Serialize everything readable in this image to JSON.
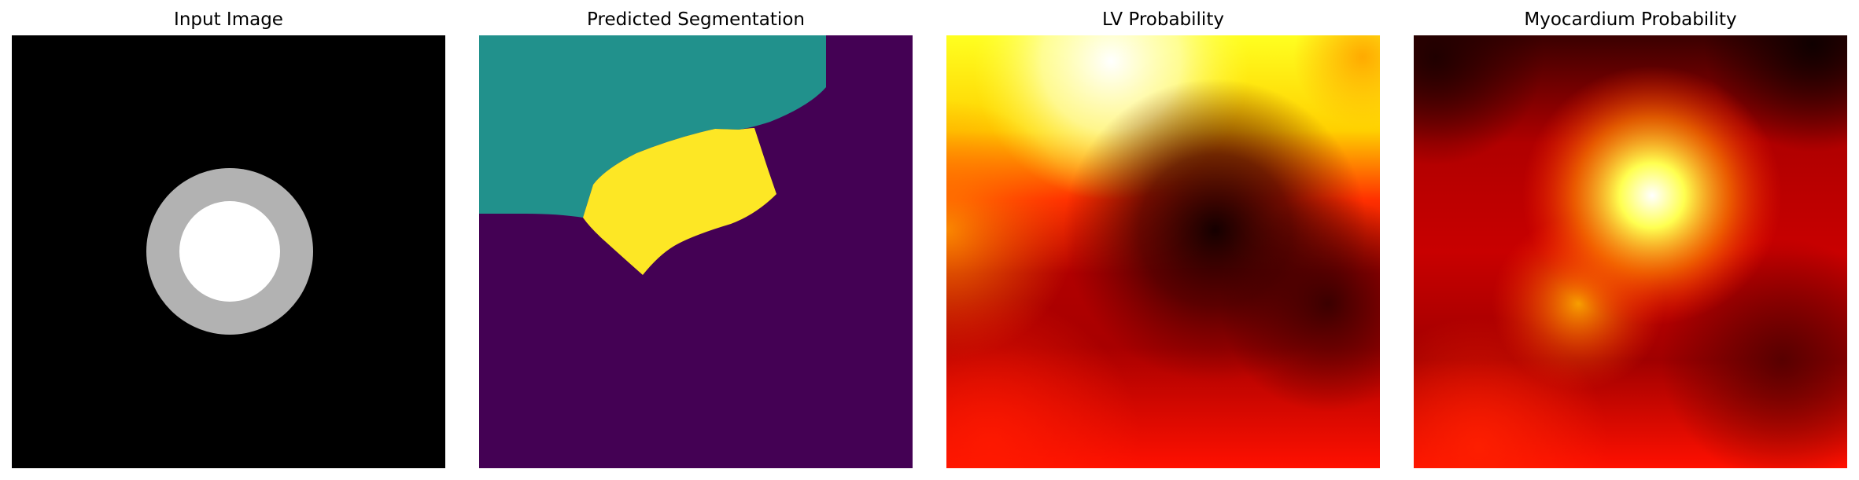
{
  "figure": {
    "panels": [
      {
        "title": "Input Image",
        "colormap": "gray"
      },
      {
        "title": "Predicted Segmentation",
        "colormap": "viridis"
      },
      {
        "title": "LV Probability",
        "colormap": "hot"
      },
      {
        "title": "Myocardium Probability",
        "colormap": "hot"
      }
    ]
  },
  "colors": {
    "gray_ring": "#b2b2b2",
    "gray_center": "#ffffff",
    "background": "#000000",
    "viridis_low": "#440154",
    "viridis_mid": "#21918c",
    "viridis_high": "#fde725"
  }
}
